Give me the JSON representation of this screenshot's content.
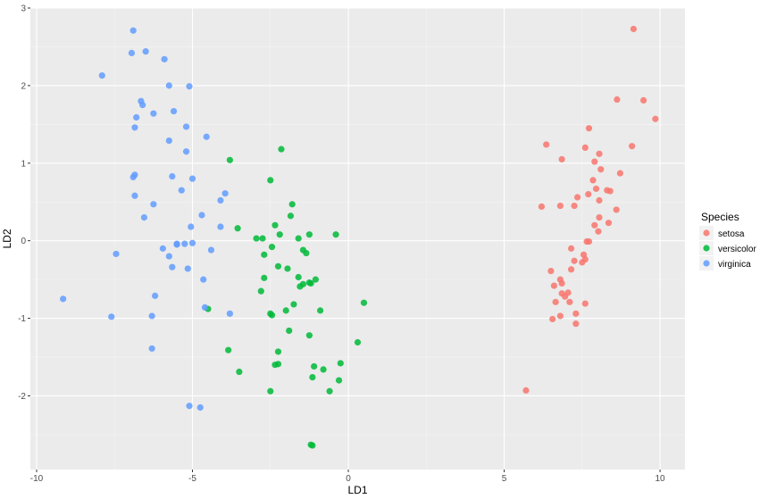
{
  "chart_data": {
    "type": "scatter",
    "xlabel": "LD1",
    "ylabel": "LD2",
    "xlim": [
      -10.2,
      10.8
    ],
    "ylim": [
      -2.95,
      3.0
    ],
    "xticks": [
      -10,
      -5,
      0,
      5,
      10
    ],
    "yticks": [
      -2,
      -1,
      0,
      1,
      2,
      3
    ],
    "grid": true,
    "legend_position": "right",
    "legend_title": "Species",
    "series": [
      {
        "name": "setosa",
        "color": "#f8766d",
        "points": [
          [
            9.15,
            2.73
          ],
          [
            8.62,
            1.82
          ],
          [
            9.47,
            1.81
          ],
          [
            9.85,
            1.57
          ],
          [
            7.72,
            1.45
          ],
          [
            9.1,
            1.22
          ],
          [
            6.35,
            1.24
          ],
          [
            7.6,
            1.2
          ],
          [
            8.05,
            1.12
          ],
          [
            6.85,
            1.05
          ],
          [
            7.9,
            1.02
          ],
          [
            8.1,
            0.92
          ],
          [
            8.72,
            0.87
          ],
          [
            7.85,
            0.78
          ],
          [
            7.7,
            0.6
          ],
          [
            7.35,
            0.56
          ],
          [
            7.95,
            0.67
          ],
          [
            8.3,
            0.65
          ],
          [
            8.4,
            0.64
          ],
          [
            8.05,
            0.52
          ],
          [
            6.2,
            0.44
          ],
          [
            6.8,
            0.45
          ],
          [
            7.25,
            0.45
          ],
          [
            8.6,
            0.4
          ],
          [
            8.05,
            0.3
          ],
          [
            8.35,
            0.23
          ],
          [
            7.9,
            0.2
          ],
          [
            8.02,
            0.12
          ],
          [
            7.65,
            -0.01
          ],
          [
            7.72,
            -0.01
          ],
          [
            7.15,
            -0.1
          ],
          [
            7.55,
            -0.18
          ],
          [
            7.6,
            -0.24
          ],
          [
            7.25,
            -0.26
          ],
          [
            7.5,
            -0.28
          ],
          [
            7.15,
            -0.37
          ],
          [
            6.5,
            -0.39
          ],
          [
            6.8,
            -0.5
          ],
          [
            6.85,
            -0.55
          ],
          [
            6.6,
            -0.58
          ],
          [
            6.85,
            -0.68
          ],
          [
            7.05,
            -0.67
          ],
          [
            6.95,
            -0.72
          ],
          [
            6.65,
            -0.79
          ],
          [
            7.1,
            -0.79
          ],
          [
            7.6,
            -0.81
          ],
          [
            7.3,
            -0.94
          ],
          [
            6.8,
            -0.97
          ],
          [
            6.55,
            -1.01
          ],
          [
            7.3,
            -1.07
          ],
          [
            5.7,
            -1.93
          ]
        ]
      },
      {
        "name": "versicolor",
        "color": "#00ba38",
        "points": [
          [
            -2.15,
            1.18
          ],
          [
            -3.8,
            1.04
          ],
          [
            -2.5,
            0.78
          ],
          [
            -1.8,
            0.47
          ],
          [
            -1.85,
            0.32
          ],
          [
            -2.35,
            0.2
          ],
          [
            -3.55,
            0.16
          ],
          [
            -2.2,
            0.08
          ],
          [
            -1.25,
            0.08
          ],
          [
            -0.4,
            0.08
          ],
          [
            -2.95,
            0.03
          ],
          [
            -2.75,
            0.03
          ],
          [
            -1.6,
            0.03
          ],
          [
            -2.45,
            -0.08
          ],
          [
            -1.45,
            -0.12
          ],
          [
            -1.35,
            -0.16
          ],
          [
            -2.7,
            -0.18
          ],
          [
            -2.25,
            -0.33
          ],
          [
            -1.95,
            -0.36
          ],
          [
            -2.7,
            -0.48
          ],
          [
            -1.6,
            -0.47
          ],
          [
            -1.05,
            -0.5
          ],
          [
            -1.45,
            -0.56
          ],
          [
            -1.25,
            -0.54
          ],
          [
            -1.2,
            -0.55
          ],
          [
            -1.55,
            -0.59
          ],
          [
            -2.8,
            -0.65
          ],
          [
            0.5,
            -0.8
          ],
          [
            -1.75,
            -0.82
          ],
          [
            -4.5,
            -0.88
          ],
          [
            -2.0,
            -0.9
          ],
          [
            -0.9,
            -0.9
          ],
          [
            -2.5,
            -0.94
          ],
          [
            -2.45,
            -0.96
          ],
          [
            -1.9,
            -1.16
          ],
          [
            -1.25,
            -1.22
          ],
          [
            0.3,
            -1.31
          ],
          [
            -3.85,
            -1.41
          ],
          [
            -2.25,
            -1.43
          ],
          [
            -2.35,
            -1.6
          ],
          [
            -2.25,
            -1.59
          ],
          [
            -0.25,
            -1.58
          ],
          [
            -1.1,
            -1.62
          ],
          [
            -0.8,
            -1.66
          ],
          [
            -3.5,
            -1.69
          ],
          [
            -1.15,
            -1.76
          ],
          [
            -0.3,
            -1.8
          ],
          [
            -2.5,
            -1.94
          ],
          [
            -0.6,
            -1.94
          ],
          [
            -1.2,
            -2.63
          ],
          [
            -1.15,
            -2.64
          ]
        ]
      },
      {
        "name": "virginica",
        "color": "#619cff",
        "points": [
          [
            -6.9,
            2.71
          ],
          [
            -6.95,
            2.42
          ],
          [
            -6.5,
            2.44
          ],
          [
            -5.9,
            2.34
          ],
          [
            -7.9,
            2.13
          ],
          [
            -5.75,
            2.0
          ],
          [
            -5.1,
            1.99
          ],
          [
            -6.65,
            1.8
          ],
          [
            -6.6,
            1.75
          ],
          [
            -5.6,
            1.67
          ],
          [
            -6.25,
            1.64
          ],
          [
            -6.8,
            1.59
          ],
          [
            -6.85,
            1.46
          ],
          [
            -5.2,
            1.47
          ],
          [
            -4.55,
            1.34
          ],
          [
            -5.75,
            1.29
          ],
          [
            -5.2,
            1.15
          ],
          [
            -6.85,
            0.85
          ],
          [
            -6.9,
            0.82
          ],
          [
            -5.65,
            0.83
          ],
          [
            -5.0,
            0.8
          ],
          [
            -3.95,
            0.61
          ],
          [
            -5.35,
            0.65
          ],
          [
            -6.85,
            0.58
          ],
          [
            -4.1,
            0.52
          ],
          [
            -6.25,
            0.47
          ],
          [
            -4.7,
            0.33
          ],
          [
            -6.55,
            0.3
          ],
          [
            -5.05,
            0.18
          ],
          [
            -4.1,
            0.18
          ],
          [
            -5.5,
            -0.04
          ],
          [
            -5.25,
            -0.04
          ],
          [
            -5.0,
            -0.03
          ],
          [
            -5.5,
            -0.05
          ],
          [
            -5.95,
            -0.1
          ],
          [
            -4.4,
            -0.12
          ],
          [
            -7.45,
            -0.17
          ],
          [
            -5.75,
            -0.2
          ],
          [
            -5.65,
            -0.34
          ],
          [
            -5.15,
            -0.36
          ],
          [
            -4.65,
            -0.5
          ],
          [
            -6.2,
            -0.71
          ],
          [
            -9.15,
            -0.75
          ],
          [
            -4.6,
            -0.86
          ],
          [
            -3.8,
            -0.94
          ],
          [
            -7.6,
            -0.98
          ],
          [
            -6.3,
            -0.97
          ],
          [
            -6.3,
            -1.39
          ],
          [
            -5.1,
            -2.13
          ],
          [
            -4.75,
            -2.15
          ]
        ]
      }
    ]
  }
}
